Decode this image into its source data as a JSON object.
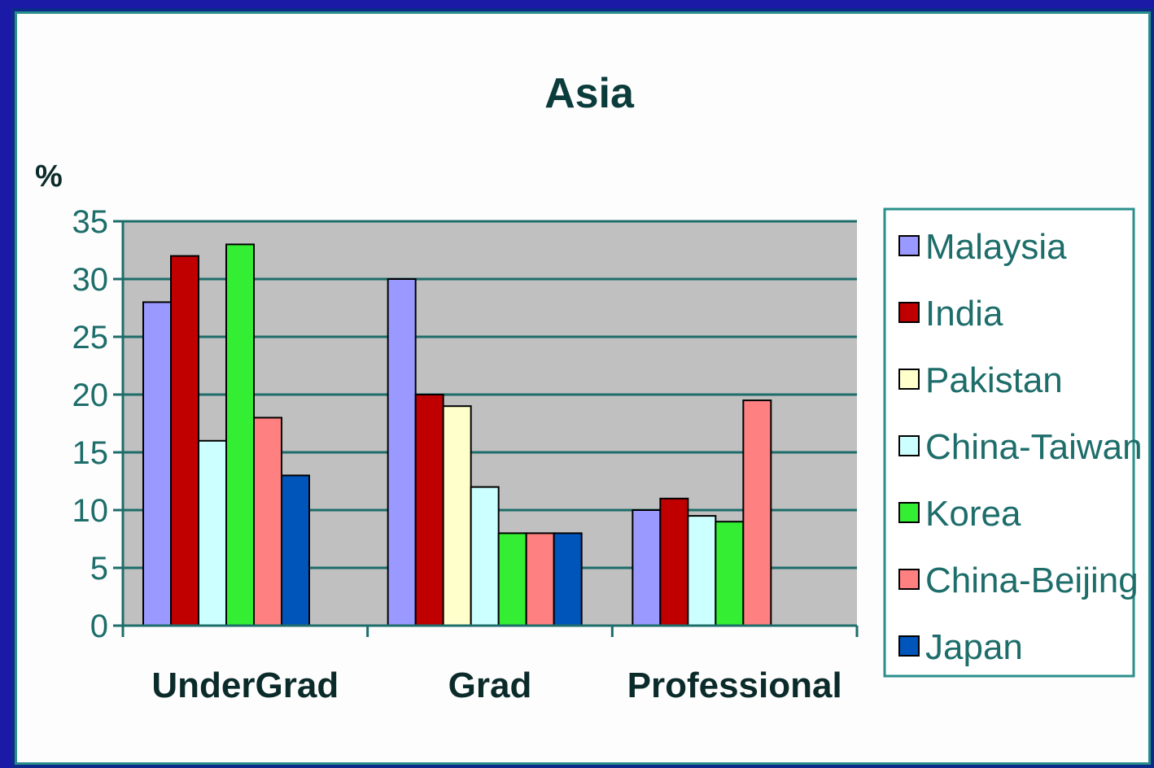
{
  "chart_data": {
    "type": "bar",
    "title": "Asia",
    "ylabel": "%",
    "xlabel": "",
    "categories": [
      "UnderGrad",
      "Grad",
      "Professional"
    ],
    "ylim": [
      0,
      35
    ],
    "yticks": [
      0,
      5,
      10,
      15,
      20,
      25,
      30,
      35
    ],
    "grid": true,
    "legend_position": "right",
    "series": [
      {
        "name": "Malaysia",
        "color": "#9999ff",
        "values": [
          28,
          30,
          10
        ]
      },
      {
        "name": "India",
        "color": "#c00000",
        "values": [
          32,
          20,
          11
        ]
      },
      {
        "name": "Pakistan",
        "color": "#ffffcc",
        "values": [
          null,
          19,
          null
        ]
      },
      {
        "name": "China-Taiwan",
        "color": "#ccffff",
        "values": [
          16,
          12,
          9.5
        ]
      },
      {
        "name": "Korea",
        "color": "#33ee33",
        "values": [
          33,
          8,
          9
        ]
      },
      {
        "name": "China-Beijing",
        "color": "#ff8080",
        "values": [
          18,
          8,
          19.5
        ]
      },
      {
        "name": "Japan",
        "color": "#0055bb",
        "values": [
          13,
          8,
          null
        ]
      }
    ]
  },
  "colors": {
    "plot_background": "#c0c0c0",
    "gridline": "#1d6d6a",
    "frame": "#2a8f8c",
    "slide_background": "#1a1aa6"
  }
}
